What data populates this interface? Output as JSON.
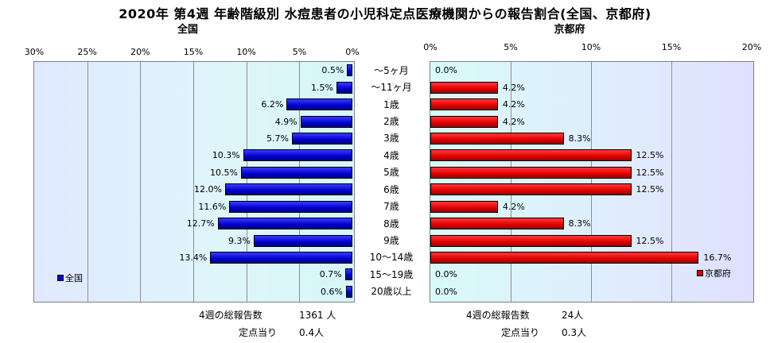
{
  "chart_data": {
    "type": "bar",
    "orientation": "horizontal",
    "title": "2020年 第4週 年齢階級別 水痘患者の小児科定点医療機関からの報告割合(全国、京都府)",
    "categories": [
      "～5ヶ月",
      "～11ヶ月",
      "1歳",
      "2歳",
      "3歳",
      "4歳",
      "5歳",
      "6歳",
      "7歳",
      "8歳",
      "9歳",
      "10～14歳",
      "15～19歳",
      "20歳以上"
    ],
    "panels": [
      {
        "name": "全国",
        "legend": "全国",
        "direction": "leftward",
        "xlim": [
          0,
          30
        ],
        "ticks": [
          "30%",
          "25%",
          "20%",
          "15%",
          "10%",
          "5%",
          "0%"
        ],
        "tick_values": [
          30,
          25,
          20,
          15,
          10,
          5,
          0
        ],
        "values": [
          0.5,
          1.5,
          6.2,
          4.9,
          5.7,
          10.3,
          10.5,
          12.0,
          11.6,
          12.7,
          9.3,
          13.4,
          0.7,
          0.6
        ],
        "labels": [
          "0.5%",
          "1.5%",
          "6.2%",
          "4.9%",
          "5.7%",
          "10.3%",
          "10.5%",
          "12.0%",
          "11.6%",
          "12.7%",
          "9.3%",
          "13.4%",
          "0.7%",
          "0.6%"
        ],
        "color": "#0000dd",
        "total_label": "4週の総報告数",
        "total_value": "1361 人",
        "per_site_label": "定点当り",
        "per_site_value": "0.4人"
      },
      {
        "name": "京都府",
        "legend": "京都府",
        "direction": "rightward",
        "xlim": [
          0,
          20
        ],
        "ticks": [
          "0%",
          "5%",
          "10%",
          "15%",
          "20%"
        ],
        "tick_values": [
          0,
          5,
          10,
          15,
          20
        ],
        "values": [
          0.0,
          4.2,
          4.2,
          4.2,
          8.3,
          12.5,
          12.5,
          12.5,
          4.2,
          8.3,
          12.5,
          16.7,
          0.0,
          0.0
        ],
        "labels": [
          "0.0%",
          "4.2%",
          "4.2%",
          "4.2%",
          "8.3%",
          "12.5%",
          "12.5%",
          "12.5%",
          "4.2%",
          "8.3%",
          "12.5%",
          "16.7%",
          "0.0%",
          "0.0%"
        ],
        "color": "#dd0000",
        "total_label": "4週の総報告数",
        "total_value": "24人",
        "per_site_label": "定点当り",
        "per_site_value": "0.3人"
      }
    ]
  }
}
